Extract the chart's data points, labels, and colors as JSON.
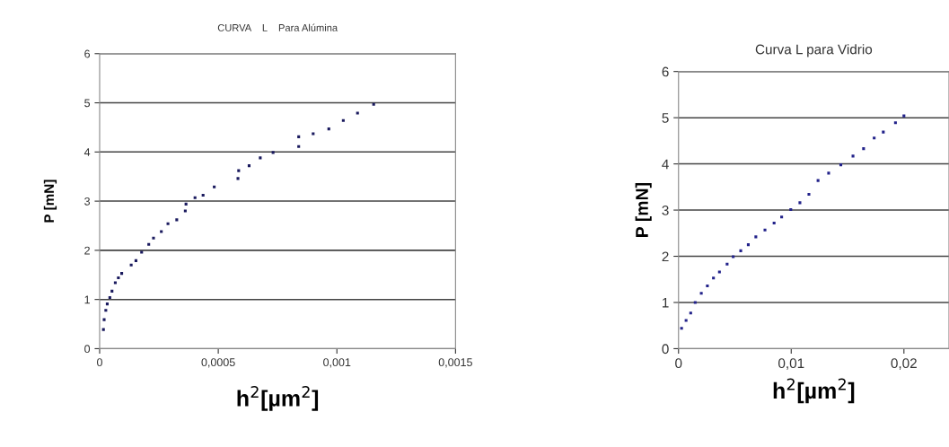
{
  "chart_data": [
    {
      "type": "scatter",
      "title": "CURVA    L    Para Alúmina",
      "xlabel": "h$^{2}$[µm$^{2}$]",
      "ylabel": "P [mN]",
      "xlim": [
        0,
        0.0015
      ],
      "ylim": [
        0,
        6
      ],
      "xticks": [
        0,
        {
          "value": 0.0005,
          "label": "0,0005"
        },
        {
          "value": 0.001,
          "label": "0,001"
        },
        {
          "value": 0.0015,
          "label": "0,0015"
        }
      ],
      "yticks": [
        0,
        1,
        2,
        3,
        4,
        5,
        6
      ],
      "grid": "y",
      "legend": false,
      "marker": "square",
      "series": [
        {
          "color": "#1a1a5e",
          "x": [
            1.6e-05,
            1.9e-05,
            2.6e-05,
            3.2e-05,
            4.3e-05,
            5.2e-05,
            6.6e-05,
            7.9e-05,
            9.3e-05,
            0.000133,
            0.000153,
            0.000177,
            0.000207,
            0.000227,
            0.00026,
            0.000288,
            0.000325,
            0.000361,
            0.000364,
            0.000402,
            0.000436,
            0.000483,
            0.000583,
            0.000586,
            0.00063,
            0.000677,
            0.000731,
            0.000839,
            0.000839,
            0.0009,
            0.000966,
            0.001027,
            0.001087,
            0.001155
          ],
          "values": [
            0.39,
            0.59,
            0.78,
            0.91,
            1.04,
            1.17,
            1.34,
            1.44,
            1.53,
            1.7,
            1.79,
            1.96,
            2.12,
            2.25,
            2.38,
            2.54,
            2.62,
            2.8,
            2.94,
            3.07,
            3.12,
            3.29,
            3.46,
            3.62,
            3.72,
            3.88,
            3.99,
            4.11,
            4.31,
            4.37,
            4.47,
            4.64,
            4.79,
            4.97
          ]
        }
      ]
    },
    {
      "type": "scatter",
      "title": "Curva L para Vidrio",
      "xlabel": "h$^{2}$[µm$^{2}$]",
      "ylabel": "P [mN]",
      "xlim": [
        0,
        0.024
      ],
      "ylim": [
        0,
        6
      ],
      "xticks": [
        0,
        {
          "value": 0.01,
          "label": "0,01"
        },
        {
          "value": 0.02,
          "label": "0,02"
        }
      ],
      "yticks": [
        0,
        1,
        2,
        3,
        4,
        5,
        6
      ],
      "grid": "y",
      "legend": false,
      "marker": "square",
      "series": [
        {
          "color": "#22228a",
          "x": [
            0.00027,
            0.00067,
            0.00108,
            0.00148,
            0.00202,
            0.00256,
            0.0031,
            0.00363,
            0.00431,
            0.00485,
            0.00552,
            0.00619,
            0.00686,
            0.00767,
            0.00848,
            0.00915,
            0.00996,
            0.01077,
            0.01157,
            0.01238,
            0.01332,
            0.0144,
            0.01548,
            0.01642,
            0.01736,
            0.01817,
            0.01925,
            0.02
          ],
          "values": [
            0.44,
            0.61,
            0.77,
            1.0,
            1.2,
            1.36,
            1.53,
            1.66,
            1.83,
            1.99,
            2.12,
            2.25,
            2.42,
            2.57,
            2.72,
            2.85,
            3.01,
            3.16,
            3.34,
            3.64,
            3.8,
            3.98,
            4.17,
            4.33,
            4.56,
            4.69,
            4.89,
            5.04
          ]
        }
      ]
    }
  ]
}
